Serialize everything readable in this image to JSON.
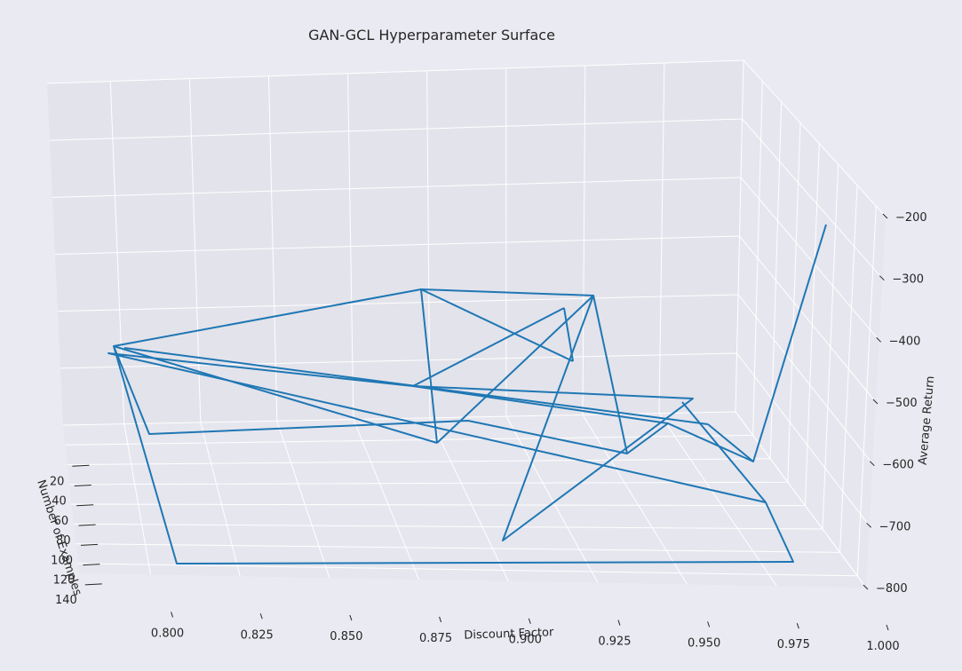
{
  "chart_data": {
    "type": "line",
    "projection": "3d",
    "title": "GAN-GCL Hyperparameter Surface",
    "xlabel": "Discount Factor",
    "ylabel": "Number of Examples",
    "zlabel": "Average Return",
    "xlim": [
      0.78,
      1.0
    ],
    "ylim": [
      0,
      150
    ],
    "zlim": [
      -800,
      -200
    ],
    "xticks": [
      "0.800",
      "0.825",
      "0.850",
      "0.875",
      "0.900",
      "0.925",
      "0.950",
      "0.975",
      "1.000"
    ],
    "yticks": [
      "20",
      "40",
      "60",
      "80",
      "100",
      "120",
      "140"
    ],
    "zticks": [
      "−200",
      "−300",
      "−400",
      "−500",
      "−600",
      "−700",
      "−800"
    ],
    "grid": true,
    "series": [
      {
        "points": [
          [
            0.8,
            20,
            -400
          ],
          [
            0.86,
            20,
            -250
          ],
          [
            0.9,
            20,
            -260
          ],
          [
            0.88,
            150,
            -800
          ],
          [
            0.97,
            50,
            -480
          ],
          [
            0.87,
            50,
            -300
          ],
          [
            0.84,
            50,
            -400
          ],
          [
            0.99,
            130,
            -640
          ],
          [
            0.99,
            150,
            -800
          ],
          [
            0.8,
            150,
            -800
          ],
          [
            0.8,
            20,
            -400
          ],
          [
            0.82,
            40,
            -600
          ],
          [
            0.91,
            40,
            -550
          ],
          [
            0.93,
            100,
            -750
          ],
          [
            0.95,
            100,
            -600
          ],
          [
            0.98,
            40,
            -600
          ],
          [
            0.99,
            20,
            -200
          ]
        ]
      }
    ]
  }
}
